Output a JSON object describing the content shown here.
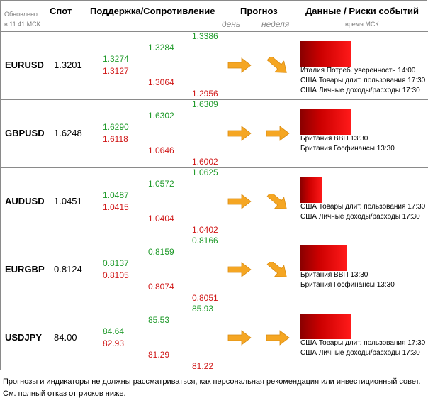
{
  "header": {
    "updated_label": "Обновлено",
    "updated_time": "в 11:41 МСК",
    "spot": "Спот",
    "support_resistance": "Поддержка/Сопротивление",
    "forecast": "Прогноз",
    "day": "день",
    "week": "неделя",
    "data_risks": "Данные / Риски событий",
    "time_msk": "время МСК"
  },
  "rows": [
    {
      "pair": "EURUSD",
      "spot": "1.3201",
      "r1": "1.3274",
      "s1": "1.3127",
      "r2": "1.3284",
      "s2": "1.3064",
      "r3": "1.3386",
      "s3": "1.2956",
      "day": "right",
      "week": "down-right",
      "risk": 0.96,
      "events": [
        "Италия Потреб. уверенность 14:00",
        "США Товары длит. пользования 17:30",
        "США Личные доходы/расходы 17:30"
      ]
    },
    {
      "pair": "GBPUSD",
      "spot": "1.6248",
      "r1": "1.6290",
      "s1": "1.6118",
      "r2": "1.6302",
      "s2": "1.0646",
      "r3": "1.6309",
      "s3": "1.6002",
      "day": "right",
      "week": "right",
      "risk": 0.94,
      "events": [
        "Британия ВВП 13:30",
        "Британия Госфинансы 13:30"
      ]
    },
    {
      "pair": "AUDUSD",
      "spot": "1.0451",
      "r1": "1.0487",
      "s1": "1.0415",
      "r2": "1.0572",
      "s2": "1.0404",
      "r3": "1.0625",
      "s3": "1.0402",
      "day": "right",
      "week": "down-right",
      "risk": 0.41,
      "events": [
        "США Товары длит. пользования 17:30",
        "США Личные доходы/расходы 17:30"
      ]
    },
    {
      "pair": "EURGBP",
      "spot": "0.8124",
      "r1": "0.8137",
      "s1": "0.8105",
      "r2": "0.8159",
      "s2": "0.8074",
      "r3": "0.8166",
      "s3": "0.8051",
      "day": "right",
      "week": "down-right",
      "risk": 0.87,
      "events": [
        "Британия ВВП 13:30",
        "Британия Госфинансы 13:30"
      ]
    },
    {
      "pair": "USDJPY",
      "spot": "84.00",
      "r1": "84.64",
      "s1": "82.93",
      "r2": "85.53",
      "s2": "81.29",
      "r3": "85.93",
      "s3": "81.22",
      "day": "right",
      "week": "right",
      "risk": 0.95,
      "events": [
        "США Товары длит. пользования 17:30",
        "США Личные доходы/расходы 17:30"
      ]
    }
  ],
  "disclaimer": "Прогнозы и индикаторы не должны рассматриваться, как персональная рекомендация или инвестиционный совет. См. полный отказ от рисков ниже.",
  "colors": {
    "support": "#d01818",
    "resistance": "#1f9a2a",
    "arrow": "#f5a623",
    "bar": "#e00000"
  }
}
